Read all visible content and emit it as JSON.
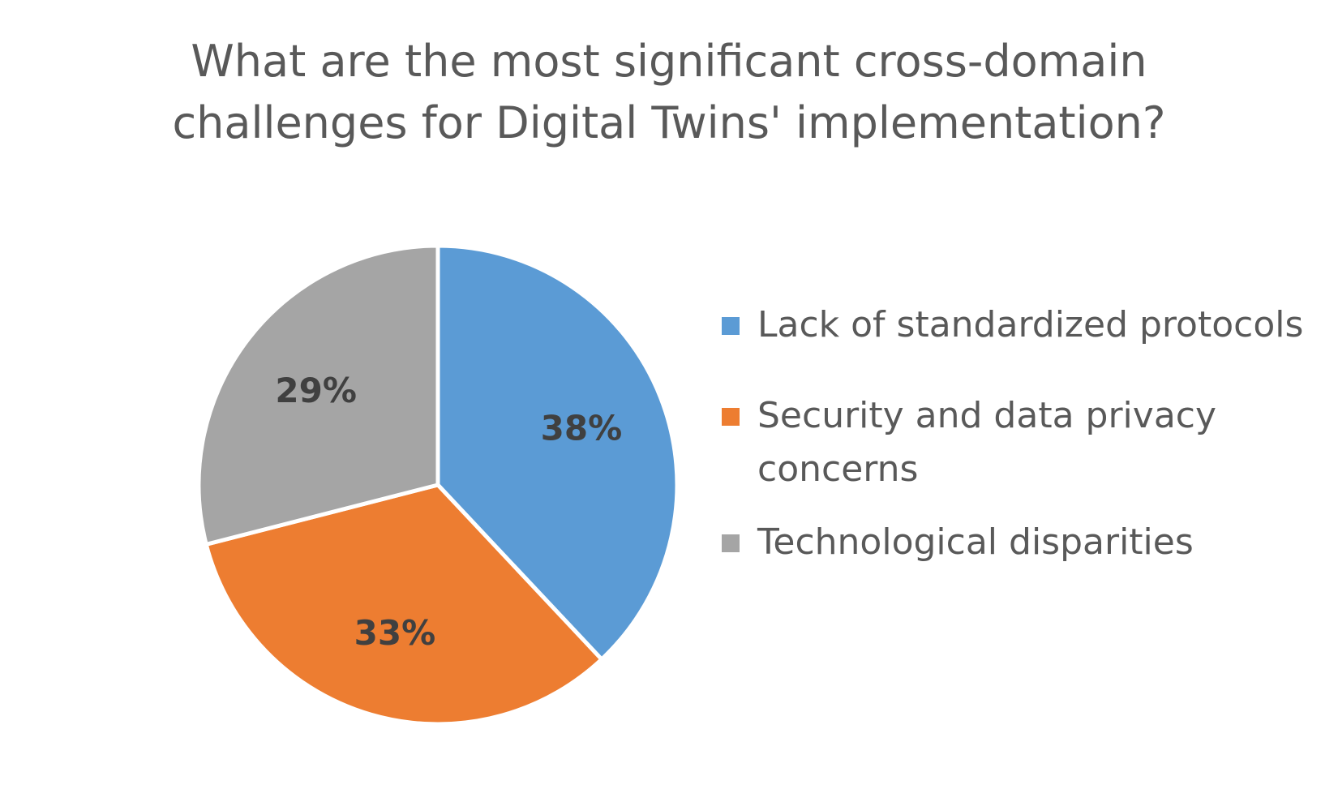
{
  "chart_data": {
    "type": "pie",
    "title_lines": [
      "What are the most significant cross-domain",
      "challenges for Digital Twins' implementation?"
    ],
    "slices": [
      {
        "label": "Lack of standardized protocols",
        "value": 38,
        "display": "38%",
        "color": "#5B9BD5",
        "legend_lines": [
          "Lack of standardized protocols"
        ]
      },
      {
        "label": "Security and data privacy concerns",
        "value": 33,
        "display": "33%",
        "color": "#ED7D31",
        "legend_lines": [
          "Security and data privacy",
          "concerns"
        ]
      },
      {
        "label": "Technological disparities",
        "value": 29,
        "display": "29%",
        "color": "#A5A5A5",
        "legend_lines": [
          "Technological disparities"
        ]
      }
    ],
    "legend_position": "right",
    "label_color": "#404040"
  }
}
